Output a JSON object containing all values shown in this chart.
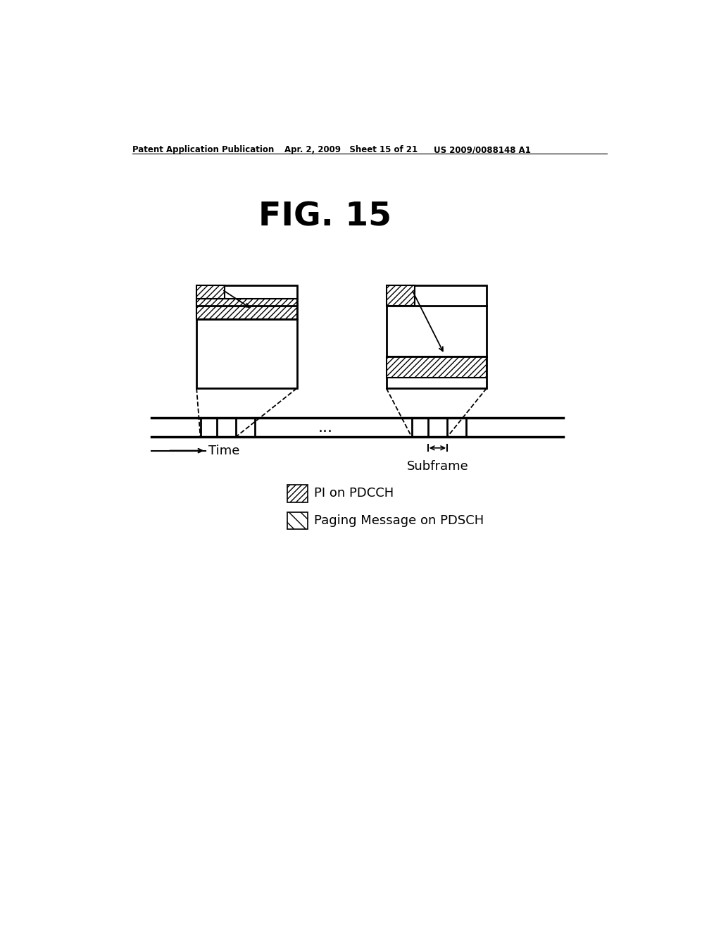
{
  "title": "FIG. 15",
  "header_left": "Patent Application Publication",
  "header_mid": "Apr. 2, 2009   Sheet 15 of 21",
  "header_right": "US 2009/0088148 A1",
  "bg_color": "#ffffff",
  "text_color": "#000000",
  "legend1_label": "PI on PDCCH",
  "legend2_label": "Paging Message on PDSCH",
  "time_label": "Time",
  "subframe_label": "Subframe",
  "dots_label": "..."
}
